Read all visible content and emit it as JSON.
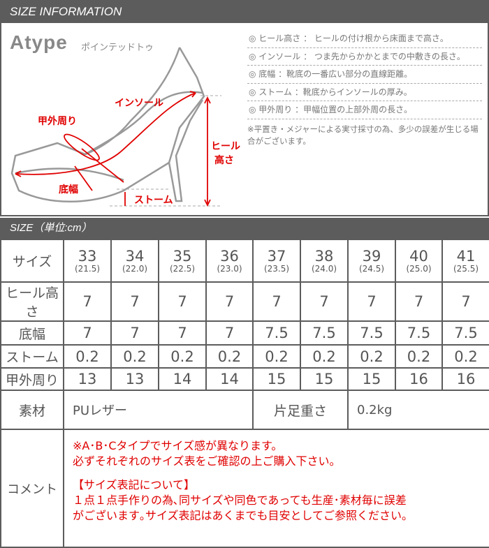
{
  "header": {
    "title": "SIZE INFORMATION"
  },
  "diagram": {
    "brand": "Atype",
    "subtitle": "ポインテッドトゥ",
    "labels": {
      "insole": "インソール",
      "instep": "甲外周り",
      "sole": "底幅",
      "stome": "ストーム",
      "heel1": "ヒール",
      "heel2": "高さ"
    },
    "definitions": [
      "◎ ヒール高さ ： ヒールの付け根から床面まで高さ。",
      "◎ インソール ： つま先からかかとまでの中敷きの長さ。",
      "◎ 底幅 ：靴底の一番広い部分の直線距離。",
      "◎ ストーム ：靴底からインソールの厚み。",
      "◎ 甲外周り ：甲幅位置の上部外周の長さ。"
    ],
    "note": "※平置き・メジャーによる実寸採寸の為、多少の誤差が生じる場合がございます。",
    "accent": "#e00000",
    "line_color": "#999999"
  },
  "size_section": {
    "title": "SIZE（単位:cm）"
  },
  "table": {
    "size_label": "サイズ",
    "sizes": [
      {
        "eu": "33",
        "jp": "(21.5)"
      },
      {
        "eu": "34",
        "jp": "(22.0)"
      },
      {
        "eu": "35",
        "jp": "(22.5)"
      },
      {
        "eu": "36",
        "jp": "(23.0)"
      },
      {
        "eu": "37",
        "jp": "(23.5)"
      },
      {
        "eu": "38",
        "jp": "(24.0)"
      },
      {
        "eu": "39",
        "jp": "(24.5)"
      },
      {
        "eu": "40",
        "jp": "(25.0)"
      },
      {
        "eu": "41",
        "jp": "(25.5)"
      }
    ],
    "rows": [
      {
        "label": "ヒール高さ",
        "values": [
          "7",
          "7",
          "7",
          "7",
          "7",
          "7",
          "7",
          "7",
          "7"
        ]
      },
      {
        "label": "底幅",
        "values": [
          "7",
          "7",
          "7",
          "7",
          "7.5",
          "7.5",
          "7.5",
          "7.5",
          "7.5"
        ]
      },
      {
        "label": "ストーム",
        "values": [
          "0.2",
          "0.2",
          "0.2",
          "0.2",
          "0.2",
          "0.2",
          "0.2",
          "0.2",
          "0.2"
        ]
      },
      {
        "label": "甲外周り",
        "values": [
          "13",
          "13",
          "14",
          "14",
          "15",
          "15",
          "15",
          "16",
          "16"
        ]
      }
    ],
    "material_label": "素材",
    "material": "PUレザー",
    "weight_label": "片足重さ",
    "weight": "0.2kg",
    "comment_label": "コメント",
    "comment": [
      "※A･B･Cタイプでサイズ感が異なります。",
      "必ずそれぞれのサイズ表をご確認の上ご購入下さい。",
      "【サイズ表記について】",
      "１点１点手作りの為､同サイズや同色であっても生産･素材毎に誤差",
      "がございます｡サイズ表記はあくまでも目安としてご参照ください。"
    ]
  }
}
